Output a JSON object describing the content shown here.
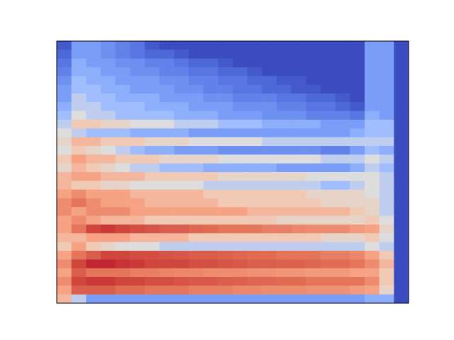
{
  "chart_data": {
    "type": "heatmap",
    "tick_labels": false,
    "clim": [
      0,
      1
    ],
    "cells": [
      [
        0.05,
        0.3,
        0.3,
        0.25,
        0.2,
        0.15,
        0.05,
        0,
        0,
        0,
        0,
        0,
        0,
        0,
        0,
        0,
        0,
        0,
        0,
        0,
        0,
        0.3,
        0.3,
        0
      ],
      [
        0.1,
        0.3,
        0.3,
        0.25,
        0.2,
        0.15,
        0.1,
        0.1,
        0.05,
        0,
        0,
        0,
        0,
        0,
        0,
        0,
        0,
        0,
        0,
        0,
        0,
        0.3,
        0.3,
        0
      ],
      [
        0.15,
        0.35,
        0.3,
        0.3,
        0.25,
        0.25,
        0.2,
        0.2,
        0.15,
        0.1,
        0.1,
        0.05,
        0,
        0,
        0,
        0,
        0,
        0,
        0,
        0,
        0,
        0.3,
        0.3,
        0
      ],
      [
        0.2,
        0.35,
        0.35,
        0.3,
        0.3,
        0.25,
        0.25,
        0.2,
        0.2,
        0.15,
        0.15,
        0.1,
        0.1,
        0.05,
        0,
        0,
        0,
        0,
        0,
        0,
        0,
        0.3,
        0.3,
        0
      ],
      [
        0.25,
        0.4,
        0.35,
        0.35,
        0.3,
        0.3,
        0.3,
        0.25,
        0.25,
        0.2,
        0.2,
        0.15,
        0.15,
        0.1,
        0.1,
        0.05,
        0.05,
        0,
        0,
        0,
        0,
        0.3,
        0.3,
        0
      ],
      [
        0.3,
        0.4,
        0.4,
        0.35,
        0.35,
        0.3,
        0.3,
        0.3,
        0.25,
        0.25,
        0.2,
        0.2,
        0.15,
        0.15,
        0.1,
        0.1,
        0.05,
        0.05,
        0,
        0,
        0,
        0.3,
        0.3,
        0
      ],
      [
        0.3,
        0.45,
        0.4,
        0.4,
        0.35,
        0.35,
        0.35,
        0.3,
        0.3,
        0.3,
        0.25,
        0.25,
        0.2,
        0.2,
        0.2,
        0.15,
        0.15,
        0.1,
        0.1,
        0.05,
        0,
        0.3,
        0.3,
        0
      ],
      [
        0.35,
        0.45,
        0.45,
        0.4,
        0.4,
        0.4,
        0.35,
        0.35,
        0.35,
        0.3,
        0.3,
        0.3,
        0.25,
        0.25,
        0.25,
        0.2,
        0.2,
        0.15,
        0.15,
        0.1,
        0.05,
        0.3,
        0.3,
        0
      ],
      [
        0.4,
        0.5,
        0.45,
        0.45,
        0.4,
        0.4,
        0.4,
        0.4,
        0.35,
        0.35,
        0.35,
        0.3,
        0.3,
        0.3,
        0.25,
        0.25,
        0.25,
        0.2,
        0.2,
        0.2,
        0.15,
        0.35,
        0.3,
        0
      ],
      [
        0.45,
        0.6,
        0.6,
        0.55,
        0.55,
        0.5,
        0.5,
        0.5,
        0.45,
        0.45,
        0.45,
        0.4,
        0.4,
        0.4,
        0.35,
        0.35,
        0.35,
        0.35,
        0.3,
        0.3,
        0.3,
        0.4,
        0.4,
        0
      ],
      [
        0.5,
        0.45,
        0.4,
        0.4,
        0.4,
        0.35,
        0.35,
        0.35,
        0.35,
        0.3,
        0.3,
        0.3,
        0.3,
        0.3,
        0.3,
        0.3,
        0.3,
        0.3,
        0.3,
        0.3,
        0.35,
        0.4,
        0.4,
        0
      ],
      [
        0.55,
        0.65,
        0.65,
        0.6,
        0.6,
        0.6,
        0.55,
        0.55,
        0.55,
        0.5,
        0.5,
        0.5,
        0.5,
        0.5,
        0.45,
        0.45,
        0.45,
        0.45,
        0.45,
        0.45,
        0.45,
        0.45,
        0.45,
        0
      ],
      [
        0.5,
        0.6,
        0.55,
        0.5,
        0.45,
        0.4,
        0.35,
        0.35,
        0.3,
        0.3,
        0.3,
        0.25,
        0.25,
        0.25,
        0.25,
        0.25,
        0.25,
        0.25,
        0.2,
        0.2,
        0.3,
        0.4,
        0.35,
        0
      ],
      [
        0.6,
        0.7,
        0.65,
        0.65,
        0.6,
        0.6,
        0.6,
        0.55,
        0.55,
        0.55,
        0.55,
        0.5,
        0.5,
        0.5,
        0.5,
        0.5,
        0.5,
        0.5,
        0.45,
        0.45,
        0.45,
        0.5,
        0.45,
        0
      ],
      [
        0.55,
        0.65,
        0.6,
        0.55,
        0.5,
        0.45,
        0.45,
        0.4,
        0.4,
        0.4,
        0.35,
        0.35,
        0.35,
        0.35,
        0.35,
        0.3,
        0.3,
        0.3,
        0.3,
        0.3,
        0.35,
        0.45,
        0.4,
        0
      ],
      [
        0.65,
        0.7,
        0.7,
        0.65,
        0.65,
        0.65,
        0.6,
        0.6,
        0.6,
        0.6,
        0.6,
        0.55,
        0.55,
        0.55,
        0.55,
        0.55,
        0.55,
        0.5,
        0.5,
        0.5,
        0.5,
        0.5,
        0.45,
        0
      ],
      [
        0.65,
        0.6,
        0.6,
        0.55,
        0.55,
        0.5,
        0.5,
        0.5,
        0.5,
        0.5,
        0.45,
        0.45,
        0.45,
        0.45,
        0.45,
        0.45,
        0.45,
        0.45,
        0.4,
        0.4,
        0.45,
        0.5,
        0.45,
        0
      ],
      [
        0.7,
        0.75,
        0.7,
        0.7,
        0.7,
        0.65,
        0.65,
        0.65,
        0.65,
        0.65,
        0.6,
        0.6,
        0.6,
        0.6,
        0.6,
        0.6,
        0.6,
        0.55,
        0.55,
        0.55,
        0.55,
        0.5,
        0.45,
        0
      ],
      [
        0.75,
        0.8,
        0.75,
        0.7,
        0.7,
        0.7,
        0.65,
        0.65,
        0.65,
        0.65,
        0.65,
        0.6,
        0.6,
        0.6,
        0.6,
        0.6,
        0.6,
        0.6,
        0.55,
        0.55,
        0.55,
        0.55,
        0.45,
        0
      ],
      [
        0.75,
        0.7,
        0.75,
        0.75,
        0.75,
        0.7,
        0.7,
        0.7,
        0.7,
        0.7,
        0.7,
        0.7,
        0.7,
        0.65,
        0.65,
        0.65,
        0.65,
        0.65,
        0.65,
        0.65,
        0.6,
        0.55,
        0.45,
        0
      ],
      [
        0.7,
        0.75,
        0.7,
        0.65,
        0.65,
        0.65,
        0.6,
        0.6,
        0.6,
        0.6,
        0.6,
        0.6,
        0.6,
        0.6,
        0.6,
        0.55,
        0.55,
        0.55,
        0.55,
        0.55,
        0.55,
        0.6,
        0.5,
        0
      ],
      [
        0.7,
        0.8,
        0.9,
        0.92,
        0.9,
        0.88,
        0.87,
        0.85,
        0.85,
        0.83,
        0.82,
        0.8,
        0.8,
        0.8,
        0.78,
        0.78,
        0.76,
        0.75,
        0.75,
        0.75,
        0.72,
        0.7,
        0.55,
        0
      ],
      [
        0.65,
        0.65,
        0.7,
        0.7,
        0.7,
        0.65,
        0.65,
        0.65,
        0.65,
        0.6,
        0.6,
        0.6,
        0.6,
        0.6,
        0.6,
        0.6,
        0.6,
        0.6,
        0.55,
        0.55,
        0.55,
        0.6,
        0.5,
        0
      ],
      [
        0.6,
        0.7,
        0.6,
        0.55,
        0.5,
        0.5,
        0.5,
        0.45,
        0.45,
        0.45,
        0.45,
        0.45,
        0.45,
        0.45,
        0.45,
        0.45,
        0.45,
        0.45,
        0.45,
        0.45,
        0.45,
        0.5,
        0.45,
        0
      ],
      [
        0.7,
        0.8,
        0.85,
        0.9,
        0.9,
        0.88,
        0.88,
        0.87,
        0.86,
        0.85,
        0.85,
        0.84,
        0.83,
        0.82,
        0.82,
        0.8,
        0.8,
        0.8,
        0.78,
        0.78,
        0.76,
        0.7,
        0.6,
        0
      ],
      [
        0.75,
        0.9,
        0.95,
        0.95,
        0.93,
        0.92,
        0.9,
        0.9,
        0.9,
        0.88,
        0.88,
        0.87,
        0.86,
        0.85,
        0.85,
        0.84,
        0.84,
        0.83,
        0.82,
        0.82,
        0.8,
        0.75,
        0.65,
        0
      ],
      [
        0.7,
        0.85,
        0.8,
        0.8,
        0.8,
        0.78,
        0.78,
        0.77,
        0.76,
        0.76,
        0.75,
        0.75,
        0.75,
        0.74,
        0.74,
        0.73,
        0.73,
        0.72,
        0.72,
        0.72,
        0.7,
        0.7,
        0.6,
        0
      ],
      [
        0.75,
        0.9,
        0.92,
        0.92,
        0.9,
        0.9,
        0.88,
        0.88,
        0.87,
        0.86,
        0.86,
        0.85,
        0.84,
        0.83,
        0.83,
        0.82,
        0.82,
        0.8,
        0.8,
        0.8,
        0.8,
        0.75,
        0.6,
        0
      ],
      [
        0.7,
        0.85,
        0.85,
        0.85,
        0.82,
        0.82,
        0.8,
        0.8,
        0.8,
        0.78,
        0.78,
        0.78,
        0.76,
        0.76,
        0.75,
        0.75,
        0.75,
        0.74,
        0.74,
        0.74,
        0.72,
        0.7,
        0.55,
        0
      ],
      [
        0.65,
        0.45,
        0.3,
        0.3,
        0.3,
        0.3,
        0.3,
        0.3,
        0.3,
        0.3,
        0.3,
        0.3,
        0.3,
        0.3,
        0.3,
        0.3,
        0.3,
        0.3,
        0.3,
        0.3,
        0.3,
        0.35,
        0.35,
        0
      ]
    ]
  }
}
